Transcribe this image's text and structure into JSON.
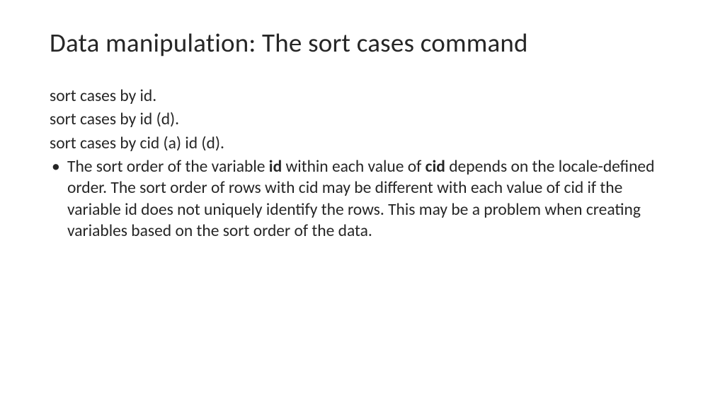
{
  "title": "Data manipulation: The sort cases command",
  "lines": {
    "l1": "sort cases by id.",
    "l2": "sort cases by id (d).",
    "l3": "sort cases by cid (a) id (d)."
  },
  "bullet": {
    "marker": "•",
    "seg1": "The sort order of the variable ",
    "bold1": "id",
    "seg2": " within each value of ",
    "bold2": "cid",
    "seg3": " depends on the locale-defined order.  The sort order of rows with cid may be different with each value of cid if the variable id does not uniquely identify the rows.  This may be a problem when creating variables based on the sort order of the data."
  },
  "colors": {
    "background": "#ffffff",
    "text": "#262626"
  },
  "typography": {
    "title_fontsize": 37,
    "body_fontsize": 23.5,
    "font_family": "Calibri"
  }
}
